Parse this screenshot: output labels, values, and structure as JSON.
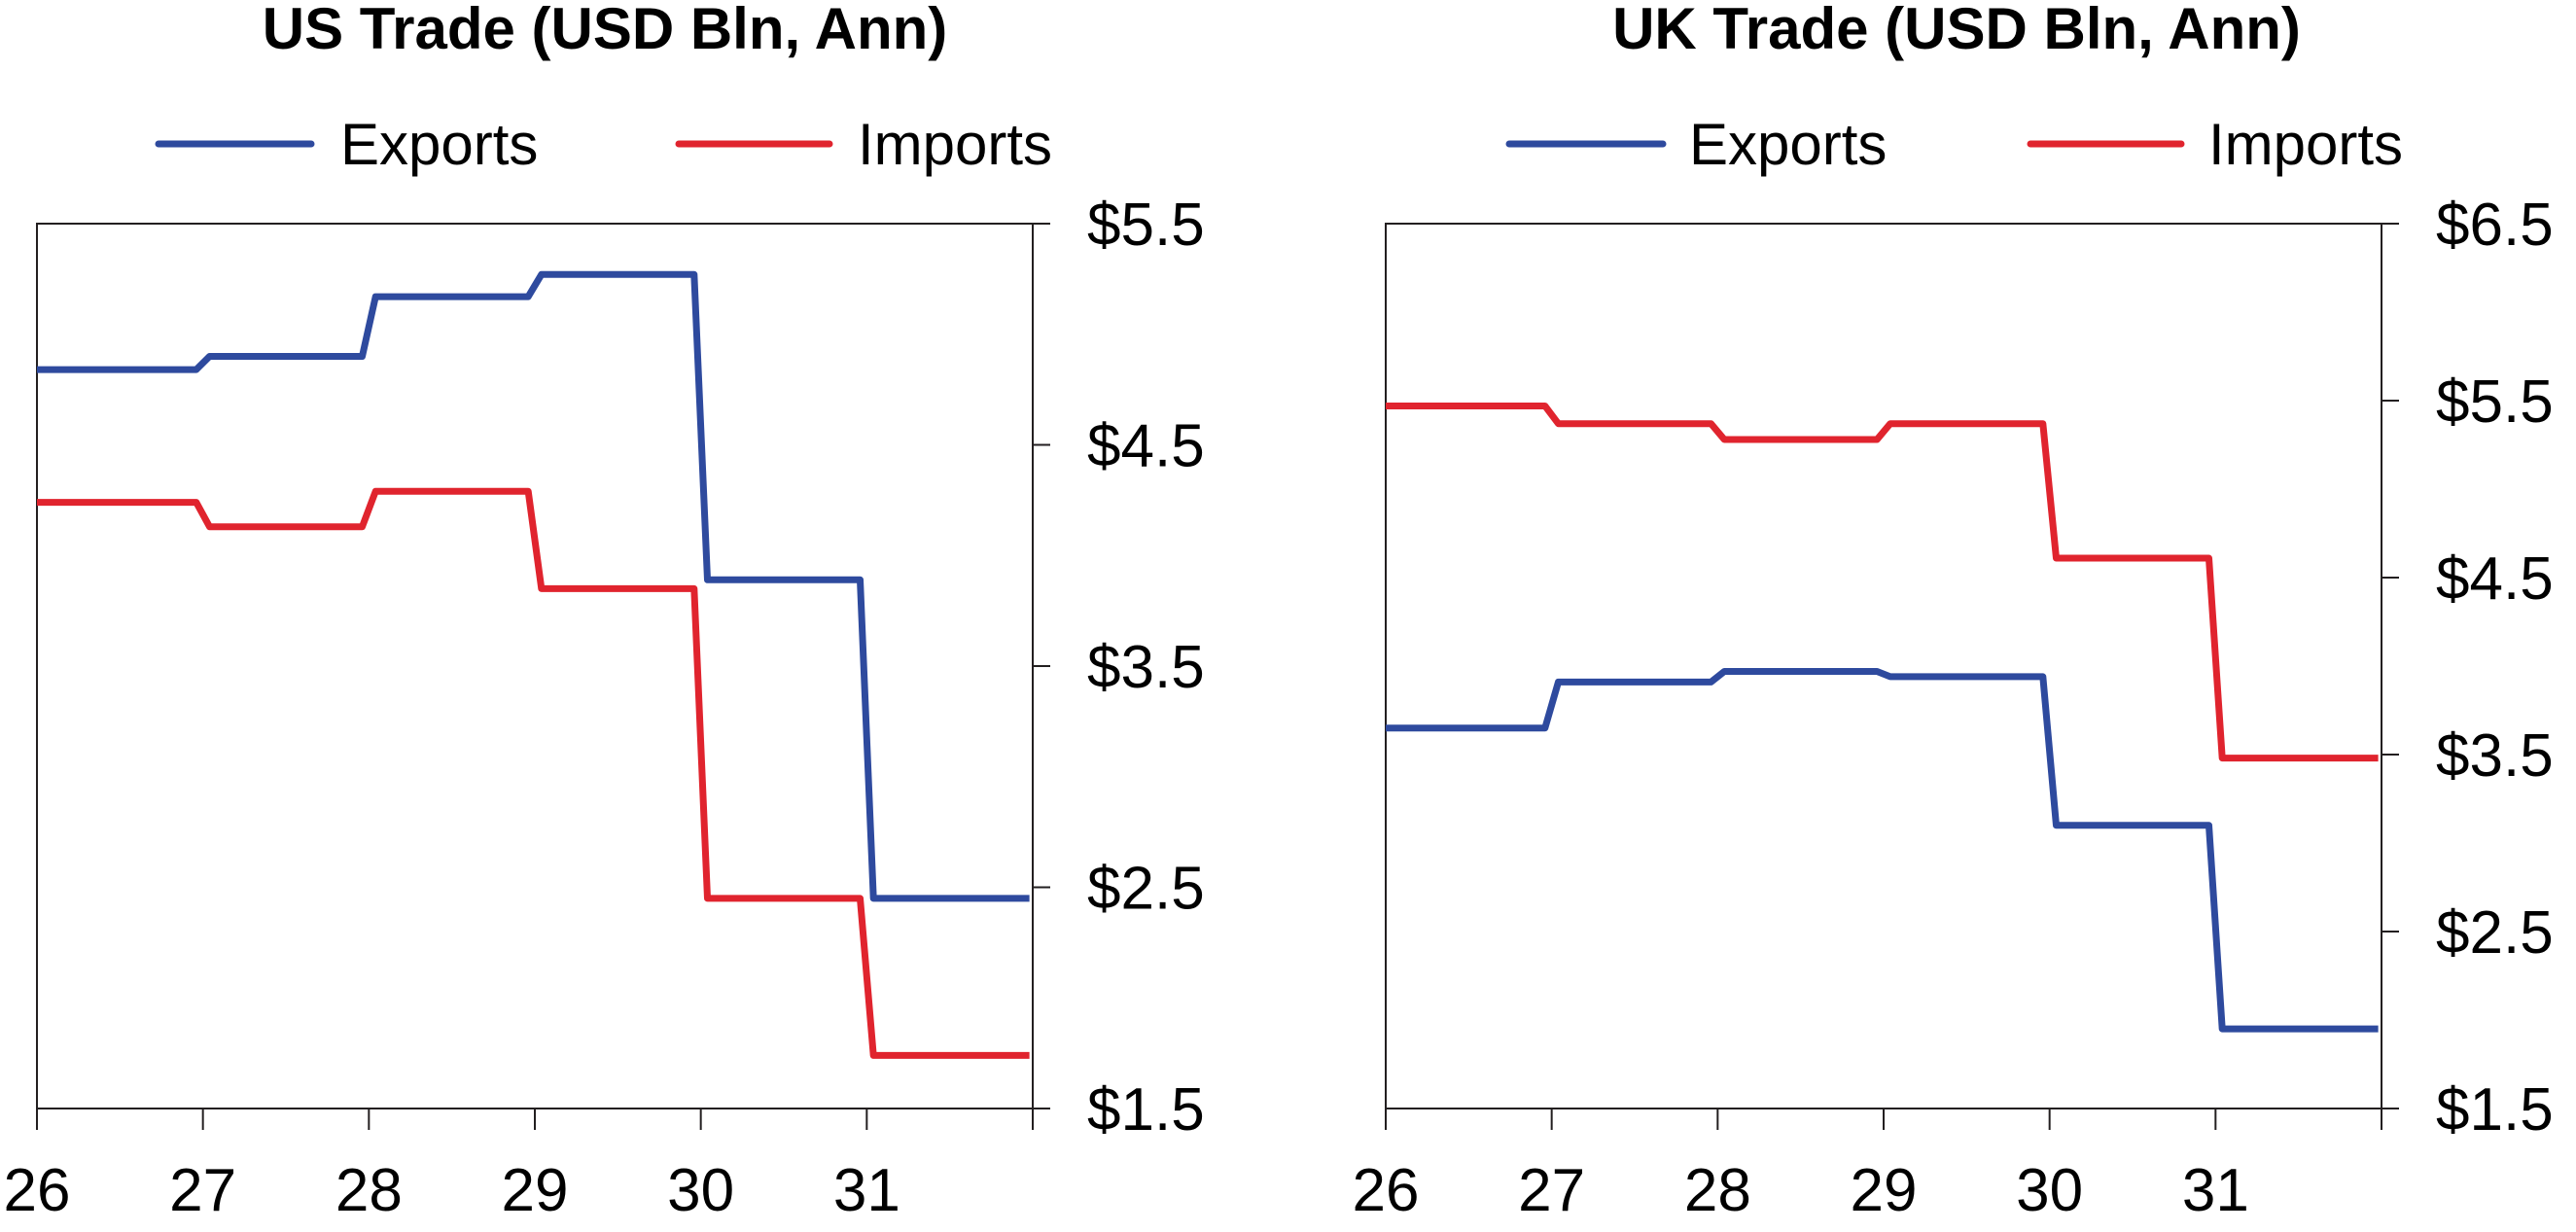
{
  "chart_data": [
    {
      "type": "line",
      "title": "US Trade (USD Bln, Ann)",
      "xlabel": "",
      "ylabel": "",
      "x_ticks": [
        "26",
        "27",
        "28",
        "29",
        "30",
        "31"
      ],
      "y_ticks": [
        "$1.5",
        "$2.5",
        "$3.5",
        "$4.5",
        "$5.5"
      ],
      "xlim": [
        26,
        32
      ],
      "ylim": [
        1.5,
        5.5
      ],
      "y_axis_side": "right",
      "grid": false,
      "legend_position": "top",
      "series": [
        {
          "name": "Exports",
          "color": "#2e4a9e",
          "x": [
            26,
            26.96,
            27.04,
            27.96,
            28.04,
            28.96,
            29.04,
            29.96,
            30.04,
            30.96,
            31.04,
            31.98
          ],
          "y": [
            4.84,
            4.84,
            4.9,
            4.9,
            5.17,
            5.17,
            5.27,
            5.27,
            3.89,
            3.89,
            2.45,
            2.45
          ]
        },
        {
          "name": "Imports",
          "color": "#e0242e",
          "x": [
            26,
            26.96,
            27.04,
            27.96,
            28.04,
            28.96,
            29.04,
            29.96,
            30.04,
            30.96,
            31.04,
            31.98
          ],
          "y": [
            4.24,
            4.24,
            4.13,
            4.13,
            4.29,
            4.29,
            3.85,
            3.85,
            2.45,
            2.45,
            1.74,
            1.74
          ]
        }
      ]
    },
    {
      "type": "line",
      "title": "UK Trade (USD Bln, Ann)",
      "xlabel": "",
      "ylabel": "",
      "x_ticks": [
        "26",
        "27",
        "28",
        "29",
        "30",
        "31"
      ],
      "y_ticks": [
        "$1.5",
        "$2.5",
        "$3.5",
        "$4.5",
        "$5.5",
        "$6.5"
      ],
      "xlim": [
        26,
        32
      ],
      "ylim": [
        1.5,
        6.5
      ],
      "y_axis_side": "right",
      "grid": false,
      "legend_position": "top",
      "series": [
        {
          "name": "Exports",
          "color": "#2e4a9e",
          "x": [
            26,
            26.96,
            27.04,
            27.96,
            28.04,
            28.96,
            29.04,
            29.96,
            30.04,
            30.96,
            31.04,
            31.98
          ],
          "y": [
            3.65,
            3.65,
            3.91,
            3.91,
            3.97,
            3.97,
            3.94,
            3.94,
            3.1,
            3.1,
            1.95,
            1.95
          ]
        },
        {
          "name": "Imports",
          "color": "#e0242e",
          "x": [
            26,
            26.96,
            27.04,
            27.96,
            28.04,
            28.96,
            29.04,
            29.96,
            30.04,
            30.96,
            31.04,
            31.98
          ],
          "y": [
            5.47,
            5.47,
            5.37,
            5.37,
            5.28,
            5.28,
            5.37,
            5.37,
            4.61,
            4.61,
            3.48,
            3.48
          ]
        }
      ]
    }
  ]
}
